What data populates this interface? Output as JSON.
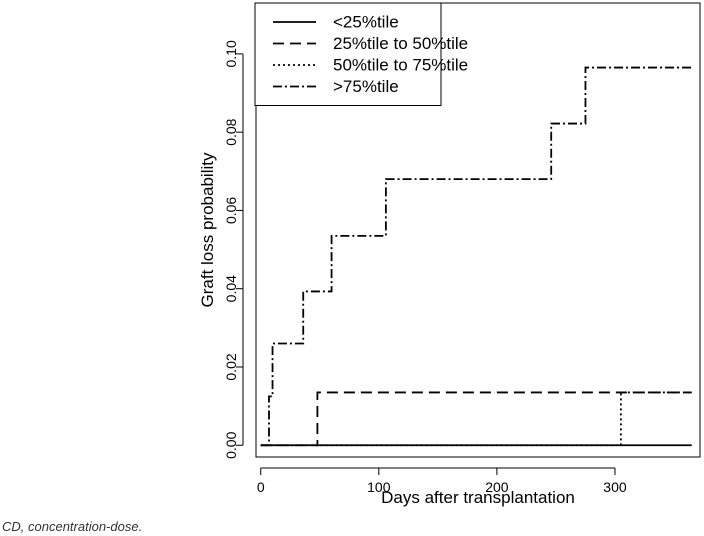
{
  "chart_data": {
    "type": "line",
    "step": true,
    "xlabel": "Days after transplantation",
    "ylabel": "Graft loss probability",
    "xlim": [
      -4,
      372
    ],
    "ylim": [
      -0.003,
      0.113
    ],
    "xticks": [
      0,
      100,
      200,
      300
    ],
    "yticks": [
      0.0,
      0.02,
      0.04,
      0.06,
      0.08,
      0.1
    ],
    "ytick_labels": [
      "0.00",
      "0.02",
      "0.04",
      "0.06",
      "0.08",
      "0.10"
    ],
    "grid": false,
    "legend_position": "top-left",
    "series": [
      {
        "name": "<25%tile",
        "dash": "solid",
        "x": [
          0,
          365
        ],
        "y": [
          0.0,
          0.0
        ]
      },
      {
        "name": "25%tile to 50%tile",
        "dash": "dashed",
        "x": [
          0,
          48,
          48,
          365
        ],
        "y": [
          0.0,
          0.0,
          0.0135,
          0.0135
        ]
      },
      {
        "name": "50%tile to 75%tile",
        "dash": "dotted",
        "x": [
          0,
          305,
          305,
          365
        ],
        "y": [
          0.0,
          0.0,
          0.0135,
          0.0135
        ]
      },
      {
        "name": ">75%tile",
        "dash": "dotdash",
        "x": [
          0,
          7,
          7,
          10,
          10,
          36,
          36,
          60,
          60,
          106,
          106,
          246,
          246,
          275,
          275,
          365
        ],
        "y": [
          0.0,
          0.0,
          0.0125,
          0.0125,
          0.026,
          0.026,
          0.0393,
          0.0393,
          0.0535,
          0.0535,
          0.068,
          0.068,
          0.0822,
          0.0822,
          0.0965,
          0.0965
        ]
      }
    ]
  },
  "footnote": "CD, concentration-dose."
}
